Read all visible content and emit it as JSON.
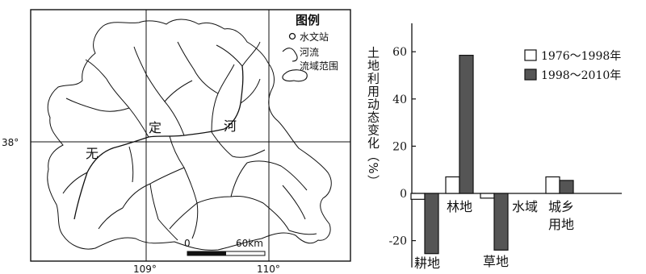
{
  "map": {
    "coord_labels": {
      "lat_38": "38°",
      "lon_109": "109°",
      "lon_110": "110°"
    },
    "river_label_chars": [
      "无",
      "定",
      "河"
    ],
    "scale": {
      "zero": "0",
      "distance": "60km"
    },
    "legend": {
      "title": "图例",
      "items": [
        {
          "symbol": "station-circle-icon",
          "label": "水文站"
        },
        {
          "symbol": "river-line-icon",
          "label": "河流"
        },
        {
          "symbol": "basin-outline-icon",
          "label": "流域范围"
        }
      ]
    }
  },
  "chart_data": {
    "type": "bar",
    "categories": [
      "耕地",
      "林地",
      "草地",
      "水域",
      "城乡\n用地"
    ],
    "series": [
      {
        "name": "1976～1998年",
        "values": [
          -2.5,
          7,
          -2,
          0,
          7
        ],
        "color": "#ffffff"
      },
      {
        "name": "1998～2010年",
        "values": [
          -25.5,
          58.5,
          -24,
          0,
          5.5
        ],
        "color": "#555555"
      }
    ],
    "title": "",
    "xlabel": "",
    "ylabel": "土地利用动态变化（%）",
    "yticks": [
      -20,
      0,
      20,
      40,
      60
    ],
    "ylim": [
      -30,
      70
    ],
    "legend_position": "top-right"
  }
}
